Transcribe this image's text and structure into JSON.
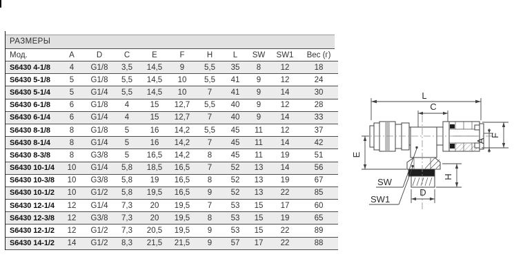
{
  "table": {
    "title": "РАЗМЕРЫ",
    "columns": [
      "Мод.",
      "A",
      "D",
      "C",
      "E",
      "F",
      "H",
      "L",
      "SW",
      "SW1",
      "Вес (г)"
    ],
    "rows": [
      [
        "S6430 4-1/8",
        "4",
        "G1/8",
        "3,5",
        "14,5",
        "9",
        "5,5",
        "35",
        "8",
        "12",
        "18"
      ],
      [
        "S6430 5-1/8",
        "5",
        "G1/8",
        "5,5",
        "14,5",
        "10",
        "5,5",
        "41",
        "9",
        "12",
        "24"
      ],
      [
        "S6430 5-1/4",
        "5",
        "G1/4",
        "5,5",
        "14,5",
        "10",
        "7",
        "41",
        "9",
        "14",
        "30"
      ],
      [
        "S6430 6-1/8",
        "6",
        "G1/8",
        "4",
        "15",
        "12,7",
        "5,5",
        "40",
        "9",
        "12",
        "28"
      ],
      [
        "S6430 6-1/4",
        "6",
        "G1/4",
        "4",
        "15",
        "12,7",
        "7",
        "40",
        "9",
        "14",
        "33"
      ],
      [
        "S6430 8-1/8",
        "8",
        "G1/8",
        "5",
        "16",
        "14,2",
        "5,5",
        "45",
        "11",
        "12",
        "37"
      ],
      [
        "S6430 8-1/4",
        "8",
        "G1/4",
        "5",
        "16",
        "14,2",
        "7",
        "45",
        "11",
        "14",
        "42"
      ],
      [
        "S6430 8-3/8",
        "8",
        "G3/8",
        "5",
        "16,5",
        "14,2",
        "8",
        "45",
        "11",
        "19",
        "51"
      ],
      [
        "S6430 10-1/4",
        "10",
        "G1/4",
        "5,8",
        "18,5",
        "16,5",
        "7",
        "52",
        "13",
        "14",
        "56"
      ],
      [
        "S6430 10-3/8",
        "10",
        "G3/8",
        "5,8",
        "19",
        "16,5",
        "8",
        "52",
        "13",
        "19",
        "67"
      ],
      [
        "S6430 10-1/2",
        "10",
        "G1/2",
        "5,8",
        "19,5",
        "16,5",
        "9",
        "52",
        "13",
        "22",
        "85"
      ],
      [
        "S6430 12-1/4",
        "12",
        "G1/4",
        "7,3",
        "20",
        "19,5",
        "7",
        "53",
        "15",
        "17",
        "60"
      ],
      [
        "S6430 12-3/8",
        "12",
        "G3/8",
        "7,3",
        "20",
        "19,5",
        "8",
        "53",
        "15",
        "19",
        "65"
      ],
      [
        "S6430 12-1/2",
        "12",
        "G1/2",
        "7,3",
        "20,5",
        "19,5",
        "9",
        "53",
        "15",
        "22",
        "89"
      ],
      [
        "S6430 14-1/2",
        "14",
        "G1/2",
        "8,3",
        "21,5",
        "21,5",
        "9",
        "57",
        "17",
        "22",
        "88"
      ]
    ]
  },
  "diagram": {
    "labels": {
      "l": "L",
      "c": "C",
      "a": "A",
      "f": "F",
      "e": "E",
      "h": "H",
      "d": "D",
      "sw": "SW",
      "sw1": "SW1"
    }
  },
  "colors": {
    "title_bar_bg": "#e1e1e1",
    "row_alt_bg": "#ececec",
    "row_bg": "#ffffff",
    "grid_line": "#4a4a4a",
    "text": "#333333",
    "model_text": "#0d0d0d",
    "collet_gray": "#9c9c9c",
    "seal_black": "#1d1d1d",
    "drawing_line": "#3f3f3f"
  }
}
